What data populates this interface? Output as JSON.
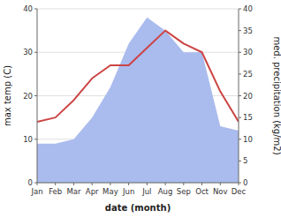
{
  "chart_data": {
    "type": "line",
    "categories": [
      "Jan",
      "Feb",
      "Mar",
      "Apr",
      "May",
      "Jun",
      "Jul",
      "Aug",
      "Sep",
      "Oct",
      "Nov",
      "Dec"
    ],
    "xlabel": "date (month)",
    "ylabel": "max temp (C)",
    "y2label": "med. precipitation (kg/m2)",
    "series": [
      {
        "type": "area",
        "axis": "y2",
        "color": "#aabbee",
        "values": [
          9,
          9,
          10,
          15,
          22,
          32,
          38,
          35,
          30,
          30,
          13,
          12
        ]
      },
      {
        "type": "line",
        "color": "#cc4444",
        "values": [
          14,
          15,
          19,
          24,
          27,
          27,
          31,
          35,
          32,
          30,
          21,
          14
        ]
      }
    ],
    "ylim": [
      0,
      40
    ],
    "yticks": [
      0,
      10,
      20,
      30,
      40
    ],
    "y2lim": [
      0,
      40
    ],
    "y2ticks": [
      0,
      5,
      10,
      15,
      20,
      25,
      30,
      35,
      40
    ],
    "grid": true
  }
}
